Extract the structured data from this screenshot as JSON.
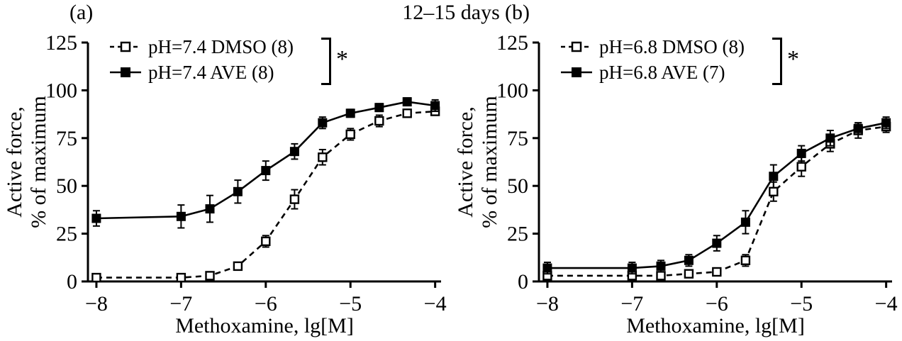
{
  "figure": {
    "title": "12–15 days",
    "panels": {
      "a": "(a)",
      "b": "(b)"
    }
  },
  "chart_data": [
    {
      "type": "line",
      "panel": "a",
      "xlabel": "Methoxamine, lg[M]",
      "ylabel": [
        "Active force,",
        "% of maximum"
      ],
      "xlim": [
        -8.1,
        -3.93
      ],
      "ylim": [
        0,
        125
      ],
      "xticks": [
        -8,
        -7,
        -6,
        -5,
        -4
      ],
      "xtick_labels": [
        "−8",
        "−7",
        "−6",
        "−5",
        "−4"
      ],
      "yticks": [
        0,
        25,
        50,
        75,
        100,
        125
      ],
      "grid": false,
      "legend_position": "top-left-inside",
      "significance": "*",
      "x": [
        -8,
        -7,
        -6.66,
        -6.33,
        -6,
        -5.66,
        -5.33,
        -5,
        -4.66,
        -4.33,
        -4
      ],
      "series": [
        {
          "name": "pH=7.4 DMSO (8)",
          "marker": "open-square",
          "line": "dashed",
          "color": "#000000",
          "values": [
            2,
            2,
            3,
            8,
            21,
            43,
            65,
            77,
            84,
            88,
            89
          ],
          "errors": [
            0,
            0,
            0,
            2,
            3,
            5,
            4,
            3,
            3,
            2,
            2
          ]
        },
        {
          "name": "pH=7.4 AVE (8)",
          "marker": "filled-square",
          "line": "solid",
          "color": "#000000",
          "values": [
            33,
            34,
            38,
            47,
            58,
            68,
            83,
            88,
            91,
            94,
            92
          ],
          "errors": [
            4,
            6,
            7,
            6,
            5,
            4,
            3,
            2,
            2,
            2,
            3
          ]
        }
      ]
    },
    {
      "type": "line",
      "panel": "b",
      "xlabel": "Methoxamine, lg[M]",
      "ylabel": [
        "Active force,",
        "% of maximum"
      ],
      "xlim": [
        -8.1,
        -3.93
      ],
      "ylim": [
        0,
        125
      ],
      "xticks": [
        -8,
        -7,
        -6,
        -5,
        -4
      ],
      "xtick_labels": [
        "−8",
        "−7",
        "−6",
        "−5",
        "−4"
      ],
      "yticks": [
        0,
        25,
        50,
        75,
        100,
        125
      ],
      "grid": false,
      "legend_position": "top-left-inside",
      "significance": "*",
      "x": [
        -8,
        -7,
        -6.66,
        -6.33,
        -6,
        -5.66,
        -5.33,
        -5,
        -4.66,
        -4.33,
        -4
      ],
      "series": [
        {
          "name": "pH=6.8 DMSO (8)",
          "marker": "open-square",
          "line": "dashed",
          "color": "#000000",
          "values": [
            3,
            3,
            3,
            4,
            5,
            11,
            47,
            60,
            72,
            79,
            81
          ],
          "errors": [
            0,
            0,
            0,
            1,
            1,
            3,
            5,
            5,
            4,
            4,
            3
          ]
        },
        {
          "name": "pH=6.8 AVE (7)",
          "marker": "filled-square",
          "line": "solid",
          "color": "#000000",
          "values": [
            7,
            7,
            8,
            11,
            20,
            31,
            55,
            67,
            75,
            80,
            83
          ],
          "errors": [
            3,
            3,
            3,
            3,
            4,
            6,
            6,
            4,
            4,
            3,
            3
          ]
        }
      ]
    }
  ]
}
